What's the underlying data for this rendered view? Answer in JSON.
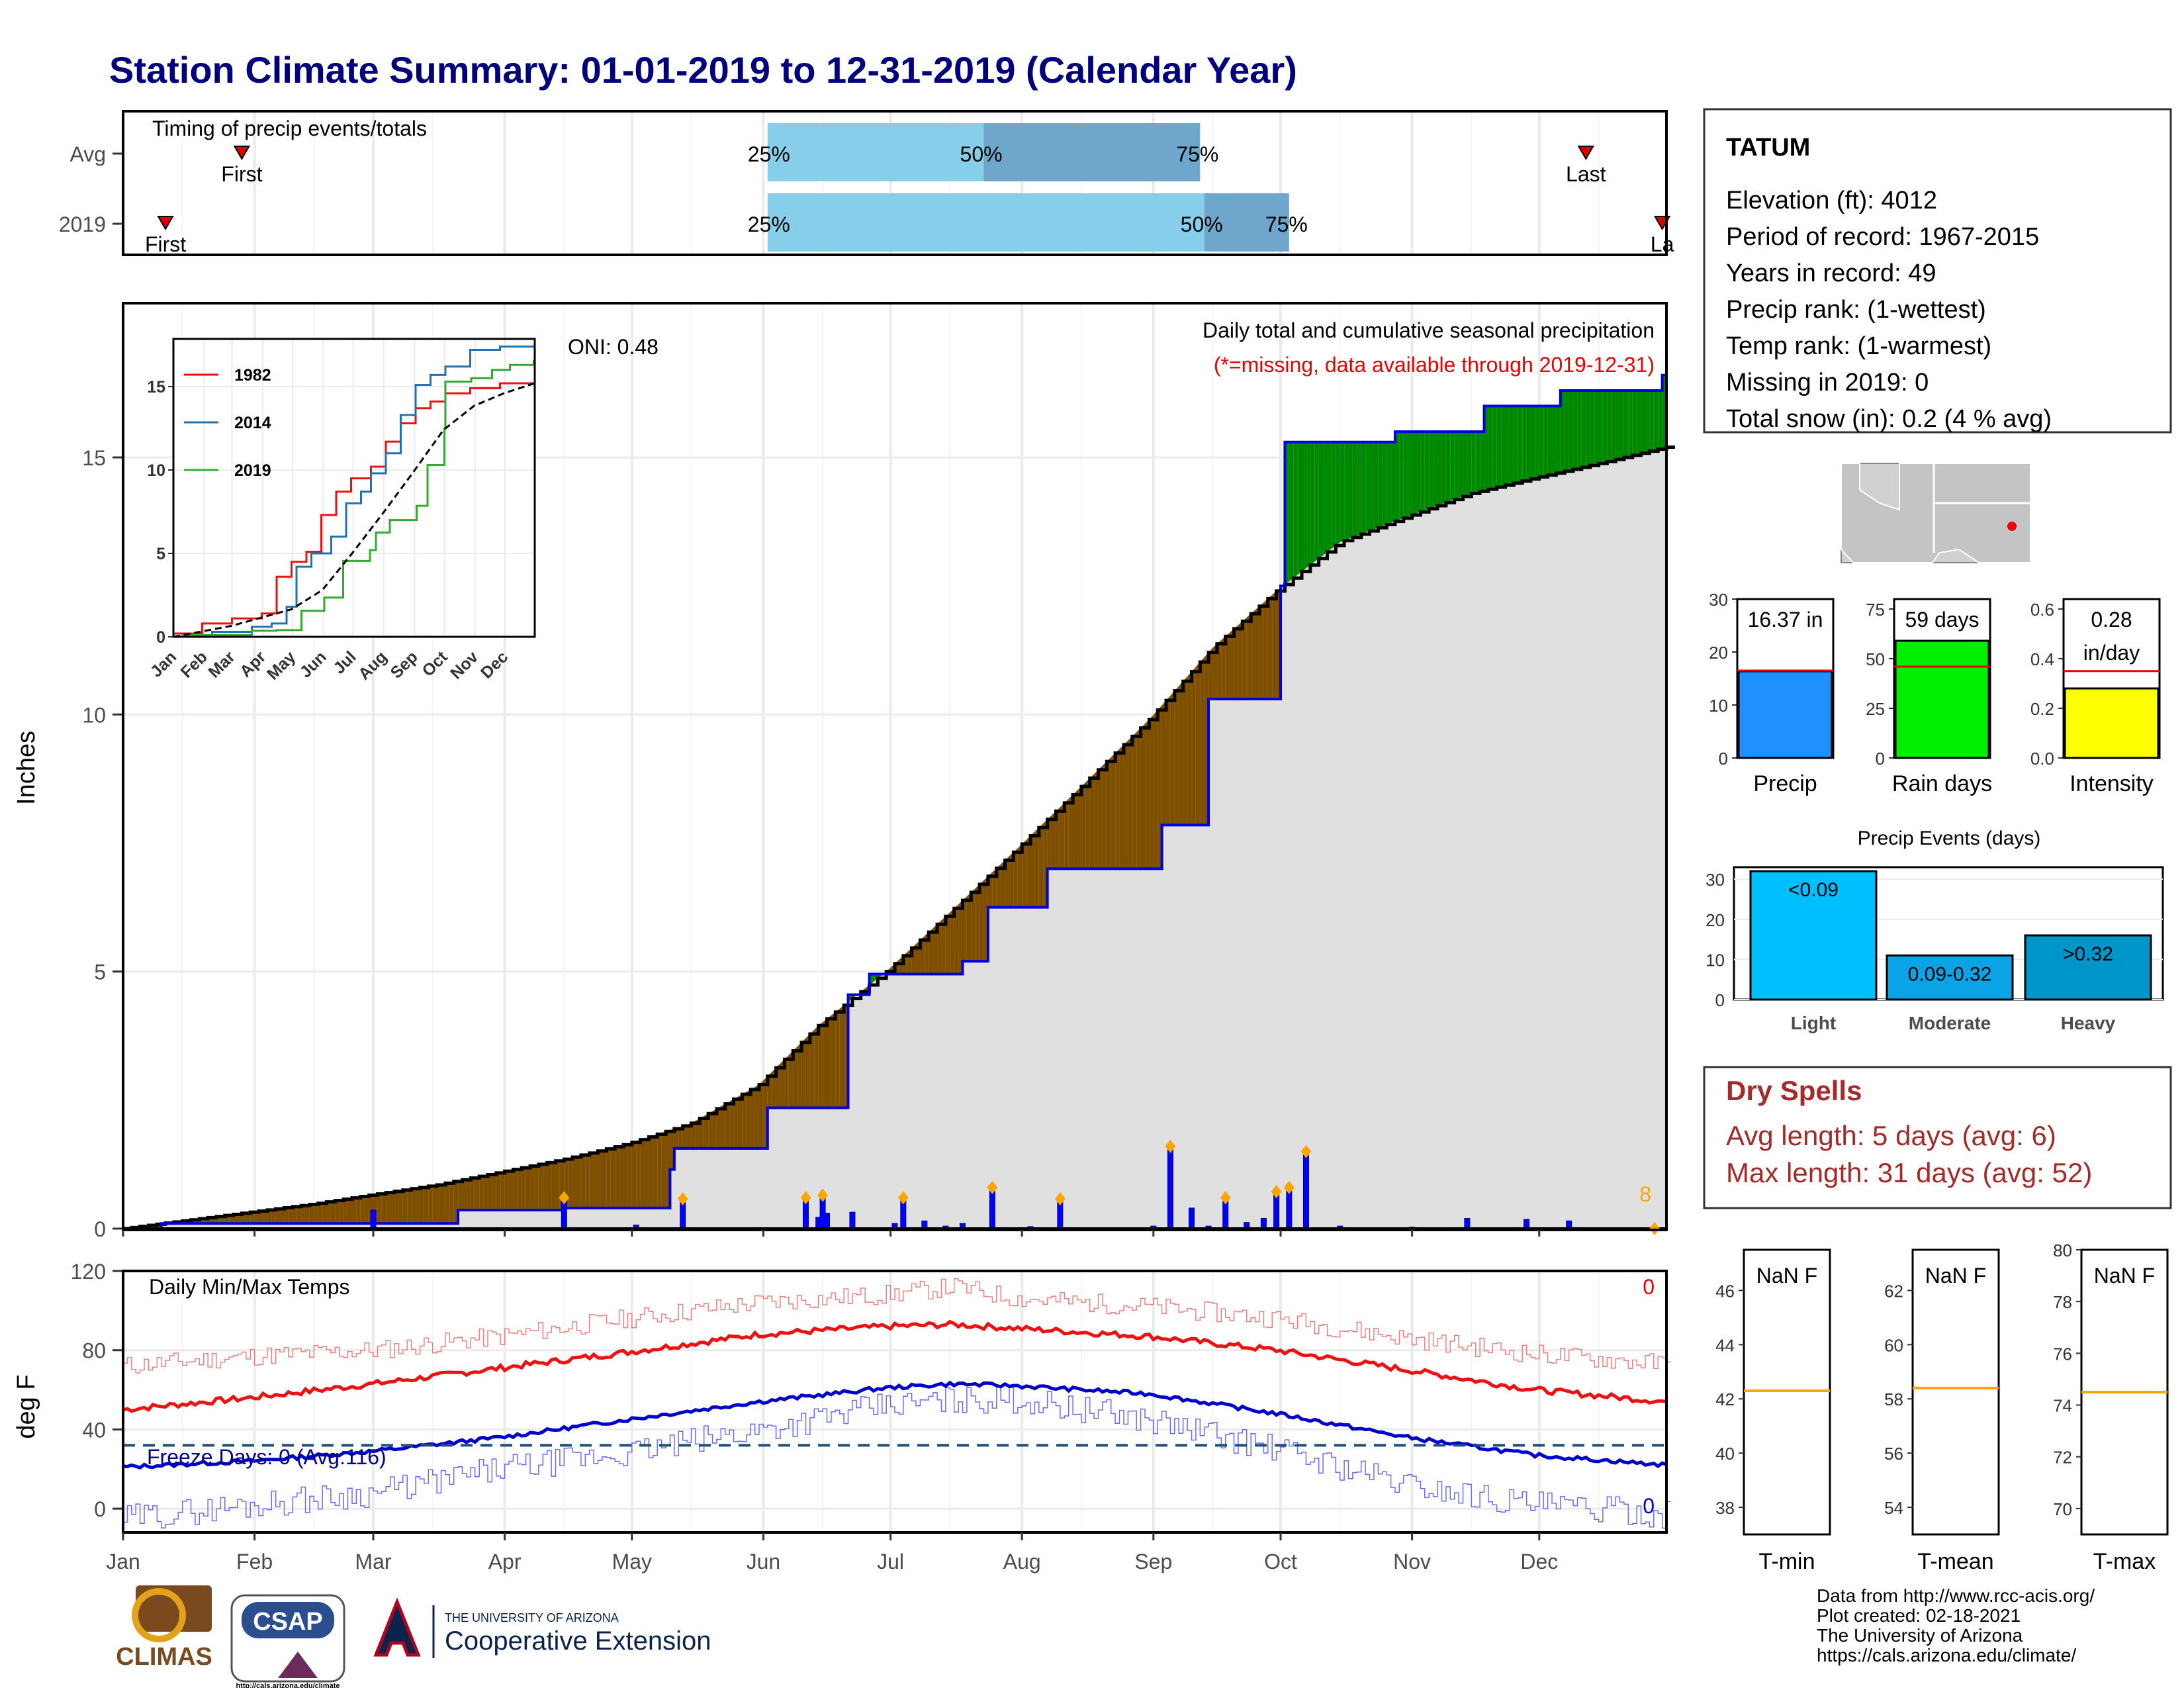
{
  "title": "Station Climate Summary: 01-01-2019 to 12-31-2019 (Calendar Year)",
  "colors": {
    "title": "#00007f",
    "q1": "#87ceeb",
    "q2": "#6fa6cc",
    "marker": "#dd0000",
    "normal_fill": "#e0e0e0",
    "deficit": "#7f4f00",
    "surplus": "#008800",
    "cum2019": "#0000dd",
    "orange": "#ffa500",
    "tmax": "#ee1111",
    "tmin": "#0000cc",
    "drytext": "#a52a2a",
    "precip_bar": "#1e90ff",
    "raindays_bar": "#00ee00",
    "intensity_bar": "#ffff00",
    "light_bar": "#00bfff",
    "moderate_bar": "#0aa3e6",
    "heavy_bar": "#0095c8"
  },
  "months": [
    "Jan",
    "Feb",
    "Mar",
    "Apr",
    "May",
    "Jun",
    "Jul",
    "Aug",
    "Sep",
    "Oct",
    "Nov",
    "Dec"
  ],
  "timing": {
    "title": "Timing of precip events/totals",
    "rows": [
      {
        "label": "Avg",
        "first_doy": 29,
        "last_doy": 346,
        "q25_doy": 153,
        "q50_doy": 204,
        "q75_doy": 255,
        "first_label": "First",
        "last_label": "Last",
        "q25_label": "25%",
        "q50_label": "50%",
        "q75_label": "75%"
      },
      {
        "label": "2019",
        "first_doy": 11,
        "last_doy": 364,
        "q25_doy": 153,
        "q50_doy": 256,
        "q75_doy": 276,
        "first_label": "First",
        "last_label": "La",
        "q25_label": "25%",
        "q50_label": "50%",
        "q75_label": "75%"
      }
    ]
  },
  "precip": {
    "ylabel": "Inches",
    "annot": "Daily total and cumulative seasonal precipitation",
    "missing_note": "(*=missing, data available through 2019-12-31)",
    "oni": "ONI: 0.48",
    "missing_count": "8",
    "yticks": [
      0,
      5,
      10,
      15
    ],
    "ylim": [
      0,
      18
    ]
  },
  "inset": {
    "yticks": [
      0,
      5,
      10,
      15
    ],
    "months": [
      "Jan",
      "Feb",
      "Mar",
      "Apr",
      "May",
      "Jun",
      "Jul",
      "Aug",
      "Sep",
      "Oct",
      "Nov",
      "Dec"
    ],
    "legend": [
      {
        "name": "1982",
        "color": "#ee1111"
      },
      {
        "name": "2014",
        "color": "#2271b5"
      },
      {
        "name": "2019",
        "color": "#33aa33"
      }
    ]
  },
  "temps": {
    "title": "Daily Min/Max Temps",
    "ylabel": "deg F",
    "yticks": [
      0,
      40,
      80,
      120
    ],
    "freeze_label": "Freeze Days: 0 (Avg:116)",
    "freeze_line": 32,
    "max_missing": "0",
    "min_missing": "0"
  },
  "station": {
    "name": "TATUM",
    "lines": [
      "Elevation (ft): 4012",
      "Period of record: 1967-2015",
      "Years in record: 49",
      "Precip rank:  (1-wettest)",
      "Temp rank:  (1-warmest)",
      "Missing in 2019: 0",
      "Total snow (in): 0.2 (4 % avg)"
    ]
  },
  "summary_bars": [
    {
      "label": "Precip",
      "value": 16.37,
      "avg": 16.5,
      "text": "16.37 in",
      "text2": "",
      "yticks": [
        0,
        10,
        20,
        30
      ],
      "ymax": 30,
      "color_key": "precip_bar"
    },
    {
      "label": "Rain days",
      "value": 59,
      "avg": 46,
      "text": "59 days",
      "text2": "",
      "yticks": [
        0,
        25,
        50,
        75
      ],
      "ymax": 80,
      "color_key": "raindays_bar"
    },
    {
      "label": "Intensity",
      "value": 0.28,
      "avg": 0.35,
      "text": "0.28",
      "text2": "in/day",
      "yticks": [
        "0.0",
        "0.2",
        "0.4",
        "0.6"
      ],
      "ymax": 0.64,
      "color_key": "intensity_bar"
    }
  ],
  "events": {
    "title": "Precip Events (days)",
    "yticks": [
      0,
      10,
      20,
      30
    ],
    "bars": [
      {
        "label": "Light",
        "value": 32,
        "text": "<0.09",
        "color_key": "light_bar"
      },
      {
        "label": "Moderate",
        "value": 11,
        "text": "0.09-0.32",
        "color_key": "moderate_bar"
      },
      {
        "label": "Heavy",
        "value": 16,
        "text": ">0.32",
        "color_key": "heavy_bar"
      }
    ]
  },
  "dry": {
    "title": "Dry Spells",
    "avg_line": "Avg length: 5 days (avg: 6)",
    "max_line": "Max length: 31 days (avg: 52)"
  },
  "temp_panels": [
    {
      "label": "T-min",
      "value_text": "NaN F",
      "avg": 42.3,
      "yticks": [
        38,
        40,
        42,
        44,
        46
      ],
      "ymin": 37,
      "ymax": 47.5
    },
    {
      "label": "T-mean",
      "value_text": "NaN F",
      "avg": 58.4,
      "yticks": [
        54,
        56,
        58,
        60,
        62
      ],
      "ymin": 53,
      "ymax": 63.5
    },
    {
      "label": "T-max",
      "value_text": "NaN F",
      "avg": 74.5,
      "yticks": [
        70,
        72,
        74,
        76,
        78,
        80
      ],
      "ymin": 69,
      "ymax": 80
    }
  ],
  "credits": [
    "Data from http://www.rcc-acis.org/",
    "Plot created: 02-18-2021",
    "The University of Arizona",
    "https://cals.arizona.edu/climate/"
  ],
  "logos": {
    "climas": "CLIMAS",
    "csap": "CSAP",
    "csap_url": "http://cals.arizona.edu/climate",
    "ua_small": "THE UNIVERSITY OF ARIZONA",
    "ua_big": "Cooperative Extension"
  },
  "chart_data": [
    {
      "type": "bar",
      "title": "Timing of precip events/totals",
      "categories": [
        "Avg",
        "2019"
      ],
      "series": [
        {
          "name": "First",
          "values": [
            "Jan 29",
            "Jan 11"
          ]
        },
        {
          "name": "25%",
          "values": [
            "Jun 2",
            "Jun 2"
          ]
        },
        {
          "name": "50%",
          "values": [
            "Jul 23",
            "Sep 13"
          ]
        },
        {
          "name": "75%",
          "values": [
            "Sep 12",
            "Oct 3"
          ]
        },
        {
          "name": "Last",
          "values": [
            "Dec 12",
            "Dec 30"
          ]
        }
      ]
    },
    {
      "type": "area",
      "title": "Daily total and cumulative seasonal precipitation",
      "ylabel": "Inches",
      "ylim": [
        0,
        18
      ],
      "x_label_kind": "day of year",
      "normal_cumulative": {
        "x": [
          1,
          15,
          31,
          46,
          59,
          75,
          90,
          105,
          120,
          135,
          151,
          165,
          181,
          196,
          212,
          227,
          243,
          258,
          273,
          288,
          304,
          319,
          334,
          350,
          365
        ],
        "y": [
          0,
          0.15,
          0.32,
          0.48,
          0.65,
          0.85,
          1.1,
          1.35,
          1.65,
          2.05,
          2.8,
          3.95,
          5.0,
          6.15,
          7.4,
          8.6,
          9.9,
          11.3,
          12.4,
          13.35,
          13.85,
          14.3,
          14.6,
          14.9,
          15.2
        ]
      },
      "cumulative_2019": {
        "x": [
          1,
          10,
          60,
          80,
          105,
          130,
          131,
          153,
          172,
          177,
          199,
          205,
          219,
          246,
          257,
          274,
          275,
          301,
          322,
          340,
          364
        ],
        "y": [
          0,
          0.1,
          0.1,
          0.36,
          0.4,
          1.15,
          1.56,
          2.35,
          4.55,
          4.95,
          5.2,
          6.25,
          7.0,
          7.85,
          10.3,
          12.5,
          15.3,
          15.5,
          16.0,
          16.3,
          16.6
        ]
      },
      "daily_events": {
        "x": [
          60,
          105,
          122,
          133,
          162,
          165,
          166,
          167,
          173,
          183,
          185,
          190,
          195,
          199,
          206,
          215,
          222,
          244,
          248,
          253,
          257,
          261,
          266,
          270,
          273,
          276,
          280,
          288,
          305,
          318,
          332,
          342
        ],
        "y": [
          0.36,
          0.6,
          0.07,
          0.58,
          0.6,
          0.22,
          0.65,
          0.3,
          0.32,
          0.1,
          0.6,
          0.15,
          0.05,
          0.1,
          0.8,
          0.04,
          0.58,
          0.05,
          1.6,
          0.4,
          0.05,
          0.6,
          0.12,
          0.2,
          0.72,
          0.8,
          1.5,
          0.05,
          0.03,
          0.2,
          0.18,
          0.15
        ]
      }
    },
    {
      "type": "line",
      "title": "",
      "x_label_kind": "day of year",
      "ylim": [
        0,
        17.5
      ],
      "series": [
        {
          "name": "1982",
          "x": [
            1,
            30,
            60,
            90,
            105,
            120,
            135,
            150,
            165,
            180,
            200,
            215,
            230,
            245,
            260,
            275,
            300,
            330,
            365
          ],
          "y": [
            0.2,
            0.8,
            1.1,
            1.4,
            3.6,
            4.5,
            5.1,
            7.3,
            8.7,
            9.5,
            10.2,
            11.7,
            12.8,
            13.7,
            14.1,
            14.6,
            14.9,
            15.2,
            15.4
          ]
        },
        {
          "name": "2014",
          "x": [
            1,
            40,
            80,
            100,
            115,
            125,
            140,
            160,
            175,
            190,
            200,
            215,
            230,
            245,
            260,
            275,
            300,
            330,
            365
          ],
          "y": [
            0,
            0.3,
            0.6,
            0.8,
            1.8,
            4.2,
            5.0,
            6.0,
            8.0,
            8.7,
            9.8,
            11.0,
            13.3,
            15.1,
            15.7,
            16.2,
            17.2,
            17.4,
            17.5
          ]
        },
        {
          "name": "2019",
          "x": [
            1,
            10,
            60,
            80,
            105,
            130,
            153,
            172,
            199,
            205,
            219,
            246,
            257,
            274,
            275,
            301,
            322,
            340,
            364
          ],
          "y": [
            0,
            0.1,
            0.1,
            0.36,
            0.4,
            1.56,
            2.35,
            4.55,
            5.2,
            6.25,
            7.0,
            7.85,
            10.3,
            12.5,
            15.3,
            15.5,
            16.0,
            16.3,
            16.6
          ]
        },
        {
          "name": "average",
          "x": [
            1,
            59,
            120,
            151,
            181,
            212,
            243,
            273,
            304,
            334,
            365
          ],
          "y": [
            0,
            0.65,
            1.65,
            2.8,
            5.0,
            7.4,
            9.9,
            12.4,
            13.85,
            14.6,
            15.2
          ]
        }
      ]
    },
    {
      "type": "line",
      "title": "Daily Min/Max Temps",
      "ylabel": "deg F",
      "ylim": [
        -12,
        120
      ],
      "x_label_kind": "day of year",
      "series": [
        {
          "name": "record high",
          "x": [
            1,
            31,
            60,
            90,
            120,
            151,
            181,
            197,
            212,
            243,
            273,
            304,
            334,
            365
          ],
          "y": [
            72,
            77,
            80,
            87,
            96,
            104,
            108,
            112,
            106,
            102,
            96,
            86,
            78,
            73
          ]
        },
        {
          "name": "normal high",
          "x": [
            1,
            31,
            60,
            90,
            120,
            151,
            181,
            197,
            212,
            243,
            273,
            304,
            334,
            365
          ],
          "y": [
            50,
            56,
            63,
            71,
            79,
            88,
            92,
            93,
            91,
            87,
            80,
            70,
            60,
            54
          ]
        },
        {
          "name": "normal low",
          "x": [
            1,
            31,
            60,
            90,
            120,
            151,
            181,
            197,
            212,
            243,
            273,
            304,
            334,
            365
          ],
          "y": [
            21,
            24,
            29,
            36,
            45,
            54,
            61,
            63,
            62,
            58,
            48,
            36,
            27,
            22
          ]
        },
        {
          "name": "record low",
          "x": [
            1,
            31,
            60,
            90,
            120,
            151,
            181,
            197,
            212,
            243,
            273,
            304,
            334,
            365
          ],
          "y": [
            -5,
            2,
            8,
            20,
            28,
            40,
            52,
            55,
            55,
            45,
            30,
            12,
            2,
            -3
          ]
        }
      ]
    },
    {
      "type": "bar",
      "title": "",
      "categories": [
        "Precip"
      ],
      "values": [
        16.37
      ],
      "ylim": [
        0,
        30
      ]
    },
    {
      "type": "bar",
      "title": "",
      "categories": [
        "Rain days"
      ],
      "values": [
        59
      ],
      "ylim": [
        0,
        80
      ]
    },
    {
      "type": "bar",
      "title": "",
      "categories": [
        "Intensity"
      ],
      "values": [
        0.28
      ],
      "ylim": [
        0,
        0.64
      ]
    },
    {
      "type": "bar",
      "title": "Precip Events (days)",
      "categories": [
        "Light",
        "Moderate",
        "Heavy"
      ],
      "values": [
        32,
        11,
        16
      ],
      "ylim": [
        0,
        33
      ]
    }
  ]
}
